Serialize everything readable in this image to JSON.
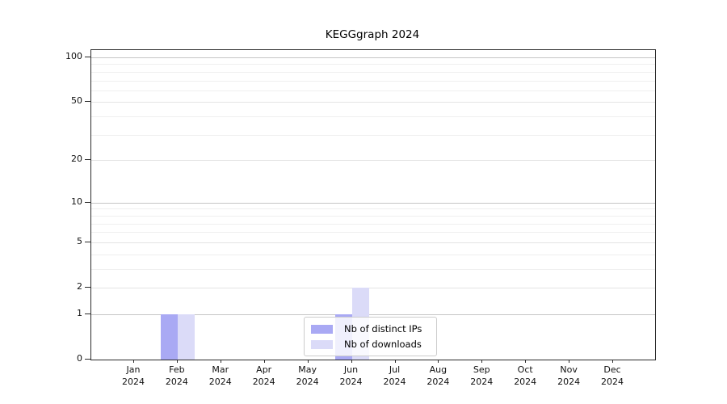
{
  "chart_data": {
    "type": "bar",
    "title": "KEGGgraph 2024",
    "x_month_labels": [
      "Jan",
      "Feb",
      "Mar",
      "Apr",
      "May",
      "Jun",
      "Jul",
      "Aug",
      "Sep",
      "Oct",
      "Nov",
      "Dec"
    ],
    "x_year_label": "2024",
    "series": [
      {
        "name": "Nb of distinct IPs",
        "color": "#a9a9f4",
        "values": [
          0,
          1,
          0,
          0,
          0,
          1,
          0,
          0,
          0,
          0,
          0,
          0
        ]
      },
      {
        "name": "Nb of downloads",
        "color": "#dbdbf8",
        "values": [
          0,
          1,
          0,
          0,
          0,
          2,
          0,
          0,
          0,
          0,
          0,
          0
        ]
      }
    ],
    "y_axis": {
      "scale": "log1p",
      "tick_values": [
        0,
        1,
        2,
        5,
        10,
        20,
        50,
        100
      ],
      "major_grid_values": [
        1,
        10,
        100
      ],
      "sub_grid_values": [
        2,
        5,
        20,
        50
      ],
      "minor_grid_values": [
        3,
        4,
        6,
        7,
        8,
        9,
        30,
        40,
        60,
        70,
        80,
        90
      ],
      "range": [
        0,
        112
      ]
    },
    "legend": {
      "position": "lower-center",
      "entries": [
        "Nb of distinct IPs",
        "Nb of downloads"
      ]
    },
    "grid": "horizontal",
    "colors": {
      "bar_distinct_ips": "#a9a9f4",
      "bar_downloads": "#dbdbf8",
      "major_grid": "#c6c6c6",
      "minor_grid": "#efefef",
      "axis": "#2a2a2a"
    }
  }
}
